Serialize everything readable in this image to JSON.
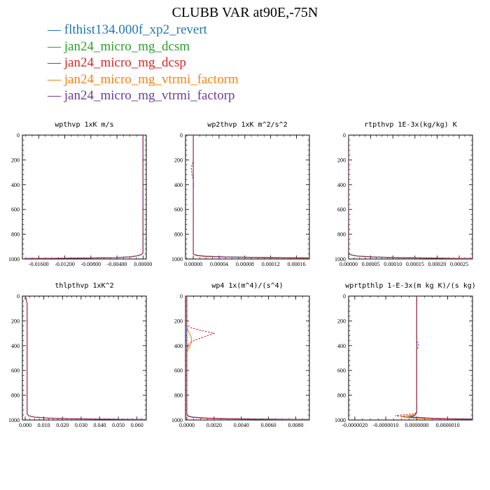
{
  "title": "CLUBB VAR at90E,-75N",
  "legend": [
    {
      "label": "flthist134.000f_xp2_revert",
      "color": "#1f77b4"
    },
    {
      "label": "jan24_micro_mg_dcsm",
      "color": "#2ca02c"
    },
    {
      "label": "jan24_micro_mg_dcsp",
      "color": "#d62728"
    },
    {
      "label": "jan24_micro_mg_vtrmi_factorm",
      "color": "#ff7f0e"
    },
    {
      "label": "jan24_micro_mg_vtrmi_factorp",
      "color": "#6a3d9a"
    }
  ],
  "chart_data": [
    {
      "type": "line",
      "title": "wpthvp  1xK m/s",
      "xlim": [
        -0.0185,
        0.0005
      ],
      "ylim": [
        1000,
        0
      ],
      "xticks": [
        -0.016,
        -0.012,
        -0.008,
        -0.004,
        0.0
      ],
      "xtick_labels": [
        "-0.01600",
        "-0.01200",
        "-0.00800",
        "-0.00400",
        "0.00000"
      ],
      "yticks": [
        0,
        200,
        400,
        600,
        800,
        1000
      ],
      "series": [
        {
          "color": "#1f77b4",
          "x": [
            0,
            0,
            0,
            -0.0003,
            -0.001,
            -0.002,
            -0.004,
            -0.008,
            -0.012,
            -0.016,
            -0.0182
          ],
          "y": [
            0,
            600,
            950,
            965,
            975,
            982,
            988,
            992,
            994,
            995,
            996
          ]
        },
        {
          "color": "#6a3d9a",
          "x": [
            0,
            0,
            0,
            -0.0003,
            -0.001,
            -0.002,
            -0.004,
            -0.008,
            -0.012,
            -0.016,
            -0.0182
          ],
          "y": [
            0,
            600,
            950,
            966,
            976,
            983,
            988,
            992,
            994,
            995,
            996
          ]
        },
        {
          "color": "#d62728",
          "dashed": true,
          "x": [
            0,
            0,
            0,
            -0.0003,
            -0.001,
            -0.002,
            -0.004,
            -0.008,
            -0.012,
            -0.016,
            -0.0182
          ],
          "y": [
            0,
            600,
            951,
            966,
            976,
            983,
            989,
            992,
            994,
            995,
            996
          ]
        }
      ]
    },
    {
      "type": "line",
      "title": "wp2thvp  1xK m^2/s^2",
      "xlim": [
        -1.2e-05,
        0.00018
      ],
      "ylim": [
        1000,
        0
      ],
      "xticks": [
        0.0,
        4e-05,
        8e-05,
        0.00012,
        0.00016
      ],
      "xtick_labels": [
        "0.00000",
        "0.00004",
        "0.00008",
        "0.00012",
        "0.00016"
      ],
      "yticks": [
        0,
        200,
        400,
        600,
        800,
        1000
      ],
      "series": [
        {
          "color": "#1f77b4",
          "x": [
            0,
            0,
            0,
            5e-06,
            2e-05,
            5e-05,
            0.0001,
            0.00015,
            0.00018
          ],
          "y": [
            0,
            500,
            960,
            970,
            978,
            983,
            987,
            990,
            991
          ]
        },
        {
          "color": "#2ca02c",
          "x": [
            0,
            0,
            0,
            5e-06,
            2e-05,
            5e-05,
            0.0001,
            0.00015,
            0.00018
          ],
          "y": [
            0,
            500,
            960,
            971,
            979,
            984,
            988,
            991,
            992
          ]
        },
        {
          "color": "#ff7f0e",
          "x": [
            0,
            0,
            0,
            5e-06,
            2e-05,
            5e-05,
            0.0001,
            0.00015,
            0.00018
          ],
          "y": [
            0,
            500,
            960,
            972,
            980,
            985,
            989,
            992,
            993
          ]
        },
        {
          "color": "#6a3d9a",
          "x": [
            0,
            0,
            0,
            5e-06,
            2e-05,
            5e-05,
            0.0001,
            0.00015,
            0.00018
          ],
          "y": [
            0,
            500,
            960,
            970,
            978,
            983,
            987,
            990,
            991
          ]
        },
        {
          "color": "#d62728",
          "dashed": true,
          "x": [
            0,
            0,
            0,
            -1e-06,
            -3e-06,
            -2e-06,
            0,
            0,
            1e-06,
            0,
            0,
            5e-06,
            2e-05,
            5e-05,
            0.0001,
            0.00015,
            0.00018
          ],
          "y": [
            0,
            150,
            200,
            230,
            260,
            320,
            360,
            380,
            400,
            440,
            960,
            972,
            980,
            985,
            989,
            992,
            993
          ]
        }
      ]
    },
    {
      "type": "line",
      "title": "rtpthvp  1E-3x(kg/kg) K",
      "xlim": [
        0,
        0.00028
      ],
      "ylim": [
        1000,
        0
      ],
      "xticks": [
        0,
        5e-05,
        0.0001,
        0.00015,
        0.0002,
        0.00025
      ],
      "xtick_labels": [
        "0.00000",
        "0.00005",
        "0.00010",
        "0.00015",
        "0.00020",
        "0.00025"
      ],
      "yticks": [
        0,
        200,
        400,
        600,
        800,
        1000
      ],
      "series": [
        {
          "color": "#1f77b4",
          "x": [
            0,
            0,
            0,
            5e-06,
            2e-05,
            6e-05,
            0.00012,
            0.0002,
            0.00028
          ],
          "y": [
            0,
            600,
            950,
            966,
            976,
            984,
            989,
            993,
            996
          ]
        },
        {
          "color": "#2ca02c",
          "x": [
            0,
            0,
            0,
            5e-06,
            2e-05,
            6e-05,
            0.00012,
            0.0002,
            0.00028
          ],
          "y": [
            0,
            600,
            950,
            967,
            977,
            985,
            990,
            994,
            997
          ]
        },
        {
          "color": "#6a3d9a",
          "x": [
            0,
            0,
            0,
            5e-06,
            2e-05,
            6e-05,
            0.00012,
            0.0002,
            0.00028
          ],
          "y": [
            0,
            600,
            950,
            966,
            976,
            984,
            989,
            993,
            996
          ]
        },
        {
          "color": "#d62728",
          "dashed": true,
          "x": [
            0,
            0,
            0,
            5e-06,
            2e-05,
            6e-05,
            0.00012,
            0.0002,
            0.00028
          ],
          "y": [
            0,
            600,
            951,
            967,
            977,
            985,
            990,
            994,
            997
          ]
        }
      ]
    },
    {
      "type": "line",
      "title": "thlpthvp  1xK^2",
      "xlim": [
        -0.0015,
        0.065
      ],
      "ylim": [
        1000,
        0
      ],
      "xticks": [
        0,
        0.01,
        0.02,
        0.03,
        0.04,
        0.05,
        0.06
      ],
      "xtick_labels": [
        "0.000",
        "0.010",
        "0.020",
        "0.030",
        "0.040",
        "0.050",
        "0.060"
      ],
      "yticks": [
        0,
        200,
        400,
        600,
        800,
        1000
      ],
      "series": [
        {
          "color": "#1f77b4",
          "x": [
            0,
            0.0005,
            0.001,
            0.001,
            0.002,
            0.005,
            0.012,
            0.025,
            0.045,
            0.065
          ],
          "y": [
            0,
            20,
            60,
            950,
            966,
            976,
            984,
            989,
            993,
            996
          ]
        },
        {
          "color": "#6a3d9a",
          "x": [
            0,
            0.0005,
            0.001,
            0.001,
            0.002,
            0.005,
            0.012,
            0.025,
            0.045,
            0.065
          ],
          "y": [
            0,
            20,
            60,
            950,
            967,
            977,
            985,
            990,
            994,
            997
          ]
        },
        {
          "color": "#d62728",
          "dashed": true,
          "x": [
            0,
            0.0005,
            0.001,
            0.001,
            0.002,
            0.005,
            0.012,
            0.025,
            0.045,
            0.065
          ],
          "y": [
            0,
            20,
            60,
            951,
            967,
            977,
            985,
            990,
            994,
            997
          ]
        }
      ]
    },
    {
      "type": "line",
      "title": "wp4  1x(m^4)/(s^4)",
      "xlim": [
        -0.0001,
        0.009
      ],
      "ylim": [
        1000,
        0
      ],
      "xticks": [
        0,
        0.002,
        0.004,
        0.006,
        0.008
      ],
      "xtick_labels": [
        "0.0000",
        "0.0020",
        "0.0040",
        "0.0060",
        "0.0080"
      ],
      "yticks": [
        0,
        200,
        400,
        600,
        800,
        1000
      ],
      "series": [
        {
          "color": "#1f77b4",
          "x": [
            0,
            0,
            0.0001,
            0.0005,
            0.0015,
            0.003,
            0.005,
            0.007,
            0.009
          ],
          "y": [
            0,
            950,
            968,
            978,
            985,
            989,
            992,
            994,
            995
          ]
        },
        {
          "color": "#2ca02c",
          "x": [
            0,
            0,
            0.0001,
            0.0005,
            0.0015,
            0.003,
            0.005,
            0.007,
            0.009
          ],
          "y": [
            0,
            950,
            969,
            979,
            986,
            990,
            993,
            995,
            996
          ]
        },
        {
          "color": "#ff7f0e",
          "x": [
            0,
            0,
            5e-05,
            0.0002,
            0.00035,
            0.0003,
            0.00015,
            0,
            0,
            0.0001,
            0.0005,
            0.0015,
            0.003,
            0.005,
            0.007,
            0.009
          ],
          "y": [
            0,
            240,
            270,
            300,
            340,
            380,
            420,
            450,
            950,
            970,
            980,
            987,
            991,
            994,
            996,
            997
          ]
        },
        {
          "color": "#6a3d9a",
          "x": [
            0,
            0,
            0.0001,
            0.0005,
            0.0015,
            0.003,
            0.005,
            0.007,
            0.009
          ],
          "y": [
            0,
            950,
            968,
            978,
            985,
            989,
            992,
            994,
            995
          ]
        },
        {
          "color": "#d62728",
          "dashed": true,
          "x": [
            0,
            0,
            0.0003,
            0.0008,
            0.0014,
            0.002,
            0.0015,
            0.001,
            0.0005,
            0.0001,
            0,
            0,
            0.0001,
            0.0005,
            0.0015,
            0.003,
            0.005,
            0.007,
            0.009
          ],
          "y": [
            0,
            230,
            255,
            270,
            285,
            300,
            320,
            340,
            360,
            390,
            430,
            950,
            970,
            980,
            987,
            991,
            994,
            996,
            997
          ]
        }
      ]
    },
    {
      "type": "line",
      "title": "wprtpthlp  1-E-3x(m kg K)/(s kg)",
      "xlim": [
        -2.2e-06,
        1.8e-06
      ],
      "ylim": [
        1000,
        0
      ],
      "xticks": [
        -2e-06,
        -1e-06,
        0,
        1e-06
      ],
      "xtick_labels": [
        "-0.0000020",
        "-0.0000010",
        "0.0000000",
        "0.0000010"
      ],
      "yticks": [
        0,
        200,
        400,
        600,
        800,
        1000
      ],
      "series": [
        {
          "color": "#1f77b4",
          "x": [
            0,
            0,
            0,
            -5e-08,
            -2e-07,
            4e-07,
            1e-06,
            1.8e-06
          ],
          "y": [
            0,
            700,
            940,
            960,
            975,
            985,
            990,
            992
          ]
        },
        {
          "color": "#2ca02c",
          "x": [
            0,
            0,
            0,
            -8e-08,
            -3e-07,
            -1e-07,
            6e-07,
            1.2e-06,
            1.8e-06
          ],
          "y": [
            0,
            700,
            940,
            962,
            976,
            985,
            990,
            993,
            995
          ]
        },
        {
          "color": "#ff7f0e",
          "x": [
            0,
            0,
            0,
            -1e-07,
            -5e-07,
            -2e-07,
            5e-07,
            1.2e-06,
            1.8e-06
          ],
          "y": [
            0,
            700,
            940,
            960,
            972,
            983,
            989,
            992,
            994
          ]
        },
        {
          "color": "#6a3d9a",
          "x": [
            0,
            0,
            0,
            -5e-08,
            -2e-07,
            4e-07,
            1e-06,
            1.8e-06
          ],
          "y": [
            0,
            700,
            940,
            961,
            976,
            985,
            990,
            992
          ]
        },
        {
          "color": "#d62728",
          "dashed": true,
          "x": [
            0,
            0,
            0,
            3e-08,
            6e-08,
            3e-08,
            0,
            0,
            0,
            -1e-07,
            -7e-07,
            -3e-07,
            4e-07,
            1.1e-06,
            1.8e-06
          ],
          "y": [
            0,
            300,
            360,
            380,
            400,
            420,
            440,
            700,
            940,
            950,
            965,
            978,
            986,
            991,
            994
          ]
        }
      ]
    }
  ]
}
